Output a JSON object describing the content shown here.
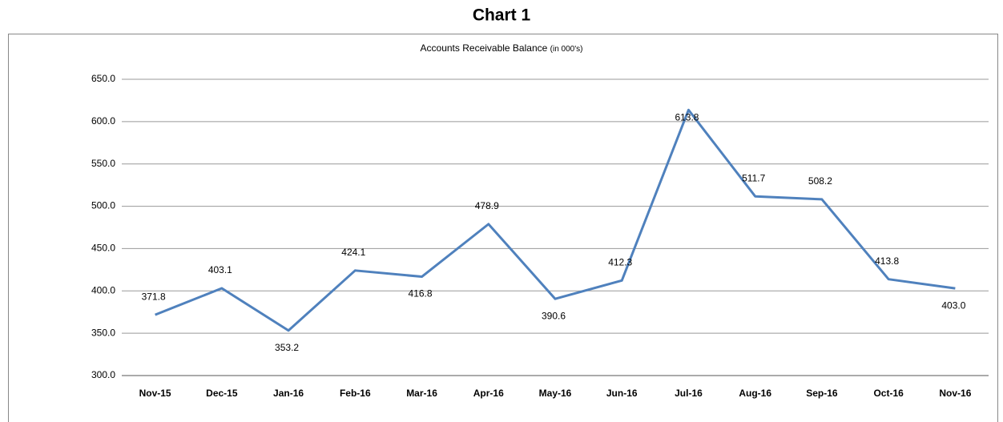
{
  "chart_data": {
    "type": "line",
    "heading": "Chart 1",
    "title": "Accounts Receivable Balance",
    "title_note": "(in 000's)",
    "categories": [
      "Nov-15",
      "Dec-15",
      "Jan-16",
      "Feb-16",
      "Mar-16",
      "Apr-16",
      "May-16",
      "Jun-16",
      "Jul-16",
      "Aug-16",
      "Sep-16",
      "Oct-16",
      "Nov-16"
    ],
    "values": [
      371.8,
      403.1,
      353.2,
      424.1,
      416.8,
      478.9,
      390.6,
      412.3,
      613.8,
      511.7,
      508.2,
      413.8,
      403.0
    ],
    "value_labels": [
      "371.8",
      "403.1",
      "353.2",
      "424.1",
      "416.8",
      "478.9",
      "390.6",
      "412.3",
      "613.8",
      "511.7",
      "508.2",
      "413.8",
      "403.0"
    ],
    "color": "#4f81bd",
    "ylim": [
      300,
      650
    ],
    "yticks": [
      {
        "value": 300,
        "label": "300.0"
      },
      {
        "value": 350,
        "label": "350.0"
      },
      {
        "value": 400,
        "label": "400.0"
      },
      {
        "value": 450,
        "label": "450.0"
      },
      {
        "value": 500,
        "label": "500.0"
      },
      {
        "value": 550,
        "label": "550.0"
      },
      {
        "value": 600,
        "label": "600.0"
      },
      {
        "value": 650,
        "label": "650.0"
      }
    ],
    "grid": true
  }
}
